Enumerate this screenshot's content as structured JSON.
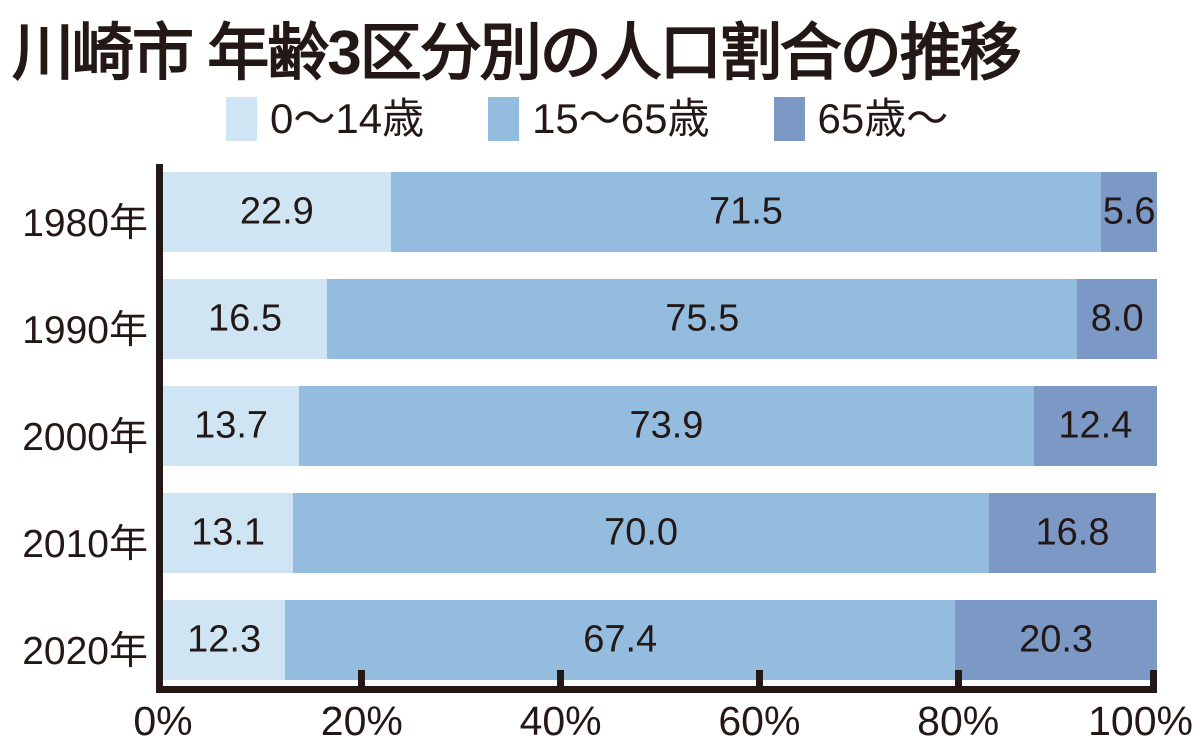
{
  "title": "川崎市 年齢3区分別の人口割合の推移",
  "colors": {
    "background": "#ffffff",
    "text": "#231815",
    "axis": "#231815",
    "series_light": "#d0e5f3",
    "series_medium": "#93bcdf",
    "series_dark": "#7c98c5"
  },
  "legend": {
    "items": [
      {
        "label": "0〜14歳",
        "color": "#d0e5f3"
      },
      {
        "label": "15〜65歳",
        "color": "#93bcdf"
      },
      {
        "label": "65歳〜",
        "color": "#7c98c5"
      }
    ]
  },
  "chart_data": {
    "type": "bar",
    "orientation": "horizontal",
    "stacked": true,
    "unit": "%",
    "title": "川崎市 年齢3区分別の人口割合の推移",
    "categories": [
      "1980年",
      "1990年",
      "2000年",
      "2010年",
      "2020年"
    ],
    "series": [
      {
        "name": "0〜14歳",
        "color": "#d0e5f3",
        "values": [
          22.9,
          16.5,
          13.7,
          13.1,
          12.3
        ]
      },
      {
        "name": "15〜65歳",
        "color": "#93bcdf",
        "values": [
          71.5,
          75.5,
          73.9,
          70.0,
          67.4
        ]
      },
      {
        "name": "65歳〜",
        "color": "#7c98c5",
        "values": [
          5.6,
          8.0,
          12.4,
          16.8,
          20.3
        ]
      }
    ],
    "value_labels": [
      [
        "22.9",
        "71.5",
        "5.6"
      ],
      [
        "16.5",
        "75.5",
        "8.0"
      ],
      [
        "13.7",
        "73.9",
        "12.4"
      ],
      [
        "13.1",
        "70.0",
        "16.8"
      ],
      [
        "12.3",
        "67.4",
        "20.3"
      ]
    ],
    "x_axis": {
      "range": [
        0,
        100
      ],
      "ticks": [
        {
          "value": 0,
          "label": "0%"
        },
        {
          "value": 20,
          "label": "20%"
        },
        {
          "value": 40,
          "label": "40%"
        },
        {
          "value": 60,
          "label": "60%"
        },
        {
          "value": 80,
          "label": "80%"
        },
        {
          "value": 100,
          "label": "100%"
        }
      ]
    },
    "legend_position": "top",
    "grid": false
  }
}
